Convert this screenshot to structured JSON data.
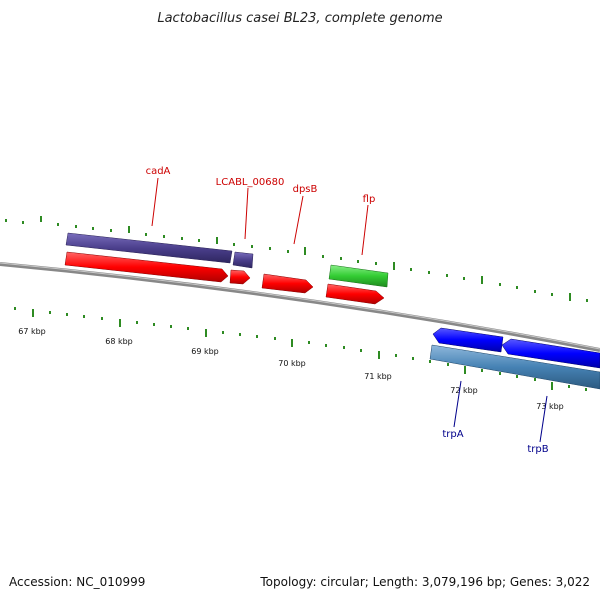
{
  "header": {
    "title": "Lactobacillus casei BL23, complete genome"
  },
  "footer": {
    "accession": "Accession: NC_010999",
    "summary": "Topology: circular; Length: 3,079,196 bp; Genes: 3,022"
  },
  "scale_labels": [
    "67 kbp",
    "68 kbp",
    "69 kbp",
    "70 kbp",
    "71 kbp",
    "72 kbp",
    "73 kbp"
  ],
  "gene_labels": {
    "cadA": "cadA",
    "LCABL_00680": "LCABL_00680",
    "dpsB": "dpsB",
    "flp": "flp",
    "trpA": "trpA",
    "trpB": "trpB"
  },
  "colors": {
    "forward_cds": "#ff0000",
    "forward_gene_purple": "#4b3f8c",
    "forward_gene_green": "#33cc33",
    "reverse_cds": "#0000ff",
    "reverse_gene": "#4682b4",
    "backbone": "#808080",
    "tick": "#2e8b22"
  }
}
